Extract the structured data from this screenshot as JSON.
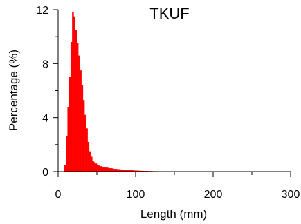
{
  "chart_data": {
    "type": "bar",
    "title": "TKUF",
    "xlabel": "Length (mm)",
    "ylabel": "Percentage (%)",
    "xlim": [
      0,
      300
    ],
    "ylim": [
      0,
      12
    ],
    "x_major_ticks": [
      0,
      100,
      200,
      300
    ],
    "x_minor_ticks": [
      50,
      150,
      250
    ],
    "y_major_ticks": [
      0,
      4,
      8,
      12
    ],
    "y_minor_ticks": [
      2,
      6,
      10
    ],
    "grid": false,
    "bin_width_mm": 2,
    "series": [
      {
        "color": "#ff0000",
        "x": [
          9,
          11,
          13,
          15,
          17,
          19,
          21,
          23,
          25,
          27,
          29,
          31,
          33,
          35,
          37,
          39,
          41,
          43,
          45,
          47,
          49,
          51,
          53,
          55,
          57,
          59,
          61,
          63,
          65,
          67,
          69,
          71,
          73,
          75,
          77,
          79,
          81,
          83,
          85,
          87,
          89,
          91,
          93,
          95,
          97,
          99,
          101,
          103,
          105,
          107,
          109,
          111,
          113,
          115,
          117,
          119,
          121,
          123,
          125,
          127,
          129,
          131,
          133,
          135,
          137,
          139,
          141,
          143,
          145,
          147,
          149,
          151
        ],
        "values": [
          0.5,
          2.6,
          4.8,
          7.0,
          9.6,
          11.8,
          11.5,
          10.5,
          9.5,
          8.6,
          7.5,
          6.4,
          5.3,
          4.2,
          3.2,
          2.2,
          1.5,
          1.1,
          0.8,
          0.7,
          0.6,
          0.5,
          0.45,
          0.4,
          0.35,
          0.35,
          0.3,
          0.3,
          0.28,
          0.25,
          0.25,
          0.22,
          0.2,
          0.2,
          0.18,
          0.18,
          0.16,
          0.15,
          0.14,
          0.13,
          0.12,
          0.11,
          0.1,
          0.1,
          0.09,
          0.08,
          0.08,
          0.07,
          0.07,
          0.06,
          0.06,
          0.05,
          0.05,
          0.05,
          0.04,
          0.04,
          0.04,
          0.03,
          0.03,
          0.03,
          0.03,
          0.02,
          0.02,
          0.02,
          0.02,
          0.02,
          0.02,
          0.01,
          0.01,
          0.01,
          0.01,
          0.01
        ]
      }
    ]
  }
}
